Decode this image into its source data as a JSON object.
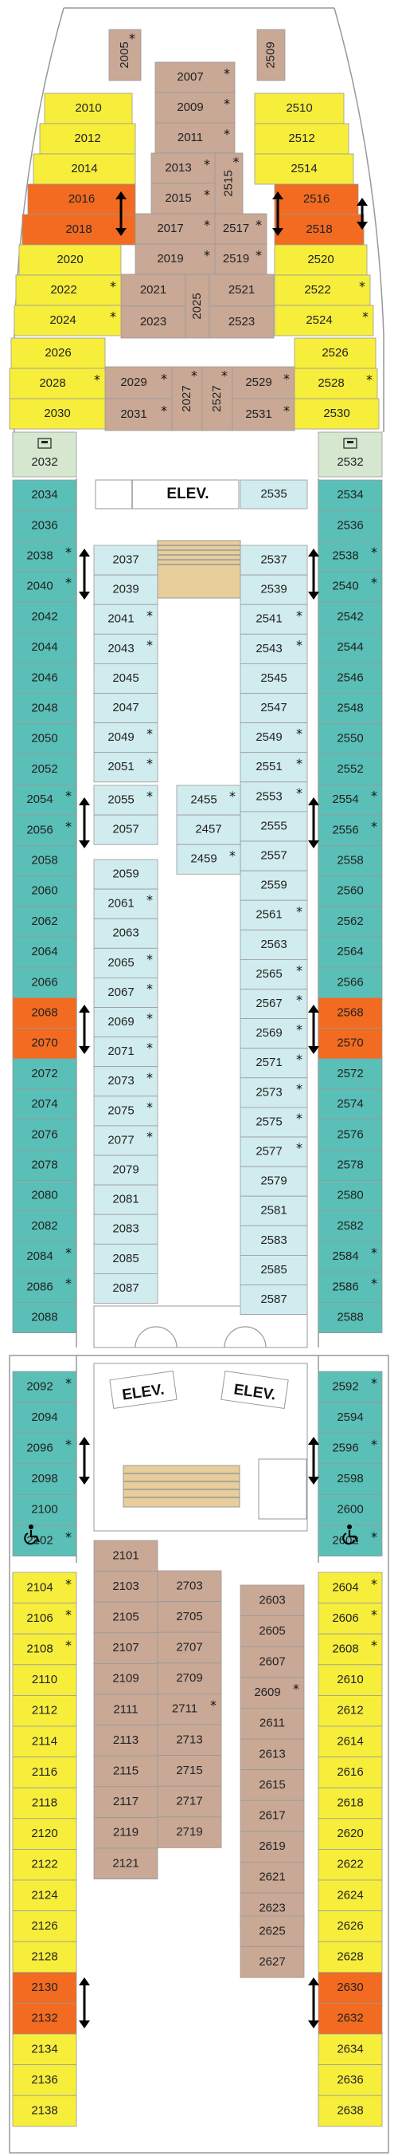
{
  "colors": {
    "balcony": "#F7EE3C",
    "ocean_view": "#5ABFB7",
    "interior": "#D1ECEE",
    "suite": "#C9A896",
    "family_connecting": "#F26B21",
    "accessible": "#D6E7CF",
    "stair": "#E7CE9A",
    "outline": "#999999"
  },
  "legend": {
    "star_symbol": "*",
    "connecting_symbol": "double-arrow-icon",
    "accessible_symbol": "wheelchair-icon",
    "phone_symbol": "phone-icon"
  },
  "elevator_label": "ELEV.",
  "cabins": [
    {
      "n": "2005",
      "t": "suite",
      "star": true
    },
    {
      "n": "2509",
      "t": "suite",
      "star": false
    },
    {
      "n": "2007",
      "t": "suite",
      "star": true
    },
    {
      "n": "2009",
      "t": "suite",
      "star": true
    },
    {
      "n": "2011",
      "t": "suite",
      "star": true
    },
    {
      "n": "2013",
      "t": "suite",
      "star": true
    },
    {
      "n": "2015",
      "t": "suite",
      "star": true
    },
    {
      "n": "2515",
      "t": "suite",
      "star": true
    },
    {
      "n": "2017",
      "t": "suite",
      "star": true
    },
    {
      "n": "2517",
      "t": "suite",
      "star": true
    },
    {
      "n": "2019",
      "t": "suite",
      "star": true
    },
    {
      "n": "2519",
      "t": "suite",
      "star": true
    },
    {
      "n": "2021",
      "t": "suite",
      "star": false
    },
    {
      "n": "2521",
      "t": "suite",
      "star": false
    },
    {
      "n": "2023",
      "t": "suite",
      "star": false
    },
    {
      "n": "2523",
      "t": "suite",
      "star": false
    },
    {
      "n": "2025",
      "t": "suite",
      "star": false
    },
    {
      "n": "2029",
      "t": "suite",
      "star": true
    },
    {
      "n": "2031",
      "t": "suite",
      "star": true
    },
    {
      "n": "2027",
      "t": "suite",
      "star": true
    },
    {
      "n": "2527",
      "t": "suite",
      "star": true
    },
    {
      "n": "2529",
      "t": "suite",
      "star": true
    },
    {
      "n": "2531",
      "t": "suite",
      "star": true
    },
    {
      "n": "2010",
      "t": "balcony",
      "star": false
    },
    {
      "n": "2012",
      "t": "balcony",
      "star": false
    },
    {
      "n": "2014",
      "t": "balcony",
      "star": false
    },
    {
      "n": "2016",
      "t": "family_connecting",
      "star": false
    },
    {
      "n": "2018",
      "t": "family_connecting",
      "star": false
    },
    {
      "n": "2020",
      "t": "balcony",
      "star": false
    },
    {
      "n": "2022",
      "t": "balcony",
      "star": true
    },
    {
      "n": "2024",
      "t": "balcony",
      "star": true
    },
    {
      "n": "2026",
      "t": "balcony",
      "star": false
    },
    {
      "n": "2028",
      "t": "balcony",
      "star": true
    },
    {
      "n": "2030",
      "t": "balcony",
      "star": false
    },
    {
      "n": "2510",
      "t": "balcony",
      "star": false
    },
    {
      "n": "2512",
      "t": "balcony",
      "star": false
    },
    {
      "n": "2514",
      "t": "balcony",
      "star": false
    },
    {
      "n": "2516",
      "t": "family_connecting",
      "star": false
    },
    {
      "n": "2518",
      "t": "family_connecting",
      "star": false
    },
    {
      "n": "2520",
      "t": "balcony",
      "star": false
    },
    {
      "n": "2522",
      "t": "balcony",
      "star": true
    },
    {
      "n": "2524",
      "t": "balcony",
      "star": true
    },
    {
      "n": "2526",
      "t": "balcony",
      "star": false
    },
    {
      "n": "2528",
      "t": "balcony",
      "star": true
    },
    {
      "n": "2530",
      "t": "balcony",
      "star": false
    },
    {
      "n": "2032",
      "t": "accessible",
      "star": false
    },
    {
      "n": "2532",
      "t": "accessible",
      "star": false
    },
    {
      "n": "2034",
      "t": "ocean_view",
      "star": false
    },
    {
      "n": "2036",
      "t": "ocean_view",
      "star": false
    },
    {
      "n": "2038",
      "t": "ocean_view",
      "star": true
    },
    {
      "n": "2040",
      "t": "ocean_view",
      "star": true
    },
    {
      "n": "2042",
      "t": "ocean_view",
      "star": false
    },
    {
      "n": "2044",
      "t": "ocean_view",
      "star": false
    },
    {
      "n": "2046",
      "t": "ocean_view",
      "star": false
    },
    {
      "n": "2048",
      "t": "ocean_view",
      "star": false
    },
    {
      "n": "2050",
      "t": "ocean_view",
      "star": false
    },
    {
      "n": "2052",
      "t": "ocean_view",
      "star": false
    },
    {
      "n": "2054",
      "t": "ocean_view",
      "star": true
    },
    {
      "n": "2056",
      "t": "ocean_view",
      "star": true
    },
    {
      "n": "2058",
      "t": "ocean_view",
      "star": false
    },
    {
      "n": "2060",
      "t": "ocean_view",
      "star": false
    },
    {
      "n": "2062",
      "t": "ocean_view",
      "star": false
    },
    {
      "n": "2064",
      "t": "ocean_view",
      "star": false
    },
    {
      "n": "2066",
      "t": "ocean_view",
      "star": false
    },
    {
      "n": "2068",
      "t": "family_connecting",
      "star": false
    },
    {
      "n": "2070",
      "t": "family_connecting",
      "star": false
    },
    {
      "n": "2072",
      "t": "ocean_view",
      "star": false
    },
    {
      "n": "2074",
      "t": "ocean_view",
      "star": false
    },
    {
      "n": "2076",
      "t": "ocean_view",
      "star": false
    },
    {
      "n": "2078",
      "t": "ocean_view",
      "star": false
    },
    {
      "n": "2080",
      "t": "ocean_view",
      "star": false
    },
    {
      "n": "2082",
      "t": "ocean_view",
      "star": false
    },
    {
      "n": "2084",
      "t": "ocean_view",
      "star": true
    },
    {
      "n": "2086",
      "t": "ocean_view",
      "star": true
    },
    {
      "n": "2088",
      "t": "ocean_view",
      "star": false
    },
    {
      "n": "2534",
      "t": "ocean_view",
      "star": false
    },
    {
      "n": "2536",
      "t": "ocean_view",
      "star": false
    },
    {
      "n": "2538",
      "t": "ocean_view",
      "star": true
    },
    {
      "n": "2540",
      "t": "ocean_view",
      "star": true
    },
    {
      "n": "2542",
      "t": "ocean_view",
      "star": false
    },
    {
      "n": "2544",
      "t": "ocean_view",
      "star": false
    },
    {
      "n": "2546",
      "t": "ocean_view",
      "star": false
    },
    {
      "n": "2548",
      "t": "ocean_view",
      "star": false
    },
    {
      "n": "2550",
      "t": "ocean_view",
      "star": false
    },
    {
      "n": "2552",
      "t": "ocean_view",
      "star": false
    },
    {
      "n": "2554",
      "t": "ocean_view",
      "star": true
    },
    {
      "n": "2556",
      "t": "ocean_view",
      "star": true
    },
    {
      "n": "2558",
      "t": "ocean_view",
      "star": false
    },
    {
      "n": "2560",
      "t": "ocean_view",
      "star": false
    },
    {
      "n": "2562",
      "t": "ocean_view",
      "star": false
    },
    {
      "n": "2564",
      "t": "ocean_view",
      "star": false
    },
    {
      "n": "2566",
      "t": "ocean_view",
      "star": false
    },
    {
      "n": "2568",
      "t": "family_connecting",
      "star": false
    },
    {
      "n": "2570",
      "t": "family_connecting",
      "star": false
    },
    {
      "n": "2572",
      "t": "ocean_view",
      "star": false
    },
    {
      "n": "2574",
      "t": "ocean_view",
      "star": false
    },
    {
      "n": "2576",
      "t": "ocean_view",
      "star": false
    },
    {
      "n": "2578",
      "t": "ocean_view",
      "star": false
    },
    {
      "n": "2580",
      "t": "ocean_view",
      "star": false
    },
    {
      "n": "2582",
      "t": "ocean_view",
      "star": false
    },
    {
      "n": "2584",
      "t": "ocean_view",
      "star": true
    },
    {
      "n": "2586",
      "t": "ocean_view",
      "star": true
    },
    {
      "n": "2588",
      "t": "ocean_view",
      "star": false
    },
    {
      "n": "2535",
      "t": "interior",
      "star": false
    },
    {
      "n": "2037",
      "t": "interior",
      "star": false
    },
    {
      "n": "2039",
      "t": "interior",
      "star": false
    },
    {
      "n": "2041",
      "t": "interior",
      "star": true
    },
    {
      "n": "2043",
      "t": "interior",
      "star": true
    },
    {
      "n": "2045",
      "t": "interior",
      "star": false
    },
    {
      "n": "2047",
      "t": "interior",
      "star": false
    },
    {
      "n": "2049",
      "t": "interior",
      "star": true
    },
    {
      "n": "2051",
      "t": "interior",
      "star": true
    },
    {
      "n": "2055",
      "t": "interior",
      "star": true
    },
    {
      "n": "2057",
      "t": "interior",
      "star": false
    },
    {
      "n": "2059",
      "t": "interior",
      "star": false
    },
    {
      "n": "2061",
      "t": "interior",
      "star": true
    },
    {
      "n": "2063",
      "t": "interior",
      "star": false
    },
    {
      "n": "2065",
      "t": "interior",
      "star": true
    },
    {
      "n": "2067",
      "t": "interior",
      "star": true
    },
    {
      "n": "2069",
      "t": "interior",
      "star": true
    },
    {
      "n": "2071",
      "t": "interior",
      "star": true
    },
    {
      "n": "2073",
      "t": "interior",
      "star": true
    },
    {
      "n": "2075",
      "t": "interior",
      "star": true
    },
    {
      "n": "2077",
      "t": "interior",
      "star": true
    },
    {
      "n": "2079",
      "t": "interior",
      "star": false
    },
    {
      "n": "2081",
      "t": "interior",
      "star": false
    },
    {
      "n": "2083",
      "t": "interior",
      "star": false
    },
    {
      "n": "2085",
      "t": "interior",
      "star": false
    },
    {
      "n": "2087",
      "t": "interior",
      "star": false
    },
    {
      "n": "2455",
      "t": "interior",
      "star": true
    },
    {
      "n": "2457",
      "t": "interior",
      "star": false
    },
    {
      "n": "2459",
      "t": "interior",
      "star": true
    },
    {
      "n": "2537",
      "t": "interior",
      "star": false
    },
    {
      "n": "2539",
      "t": "interior",
      "star": false
    },
    {
      "n": "2541",
      "t": "interior",
      "star": true
    },
    {
      "n": "2543",
      "t": "interior",
      "star": true
    },
    {
      "n": "2545",
      "t": "interior",
      "star": false
    },
    {
      "n": "2547",
      "t": "interior",
      "star": false
    },
    {
      "n": "2549",
      "t": "interior",
      "star": true
    },
    {
      "n": "2551",
      "t": "interior",
      "star": true
    },
    {
      "n": "2553",
      "t": "interior",
      "star": true
    },
    {
      "n": "2555",
      "t": "interior",
      "star": false
    },
    {
      "n": "2557",
      "t": "interior",
      "star": false
    },
    {
      "n": "2559",
      "t": "interior",
      "star": false
    },
    {
      "n": "2561",
      "t": "interior",
      "star": true
    },
    {
      "n": "2563",
      "t": "interior",
      "star": false
    },
    {
      "n": "2565",
      "t": "interior",
      "star": true
    },
    {
      "n": "2567",
      "t": "interior",
      "star": true
    },
    {
      "n": "2569",
      "t": "interior",
      "star": true
    },
    {
      "n": "2571",
      "t": "interior",
      "star": true
    },
    {
      "n": "2573",
      "t": "interior",
      "star": true
    },
    {
      "n": "2575",
      "t": "interior",
      "star": true
    },
    {
      "n": "2577",
      "t": "interior",
      "star": true
    },
    {
      "n": "2579",
      "t": "interior",
      "star": false
    },
    {
      "n": "2581",
      "t": "interior",
      "star": false
    },
    {
      "n": "2583",
      "t": "interior",
      "star": false
    },
    {
      "n": "2585",
      "t": "interior",
      "star": false
    },
    {
      "n": "2587",
      "t": "interior",
      "star": false
    },
    {
      "n": "2092",
      "t": "ocean_view",
      "star": true
    },
    {
      "n": "2094",
      "t": "ocean_view",
      "star": false
    },
    {
      "n": "2096",
      "t": "ocean_view",
      "star": true
    },
    {
      "n": "2098",
      "t": "ocean_view",
      "star": false
    },
    {
      "n": "2100",
      "t": "ocean_view",
      "star": false
    },
    {
      "n": "2102",
      "t": "ocean_view",
      "star": true
    },
    {
      "n": "2592",
      "t": "ocean_view",
      "star": true
    },
    {
      "n": "2594",
      "t": "ocean_view",
      "star": false
    },
    {
      "n": "2596",
      "t": "ocean_view",
      "star": true
    },
    {
      "n": "2598",
      "t": "ocean_view",
      "star": false
    },
    {
      "n": "2600",
      "t": "ocean_view",
      "star": false
    },
    {
      "n": "2602",
      "t": "ocean_view",
      "star": true
    },
    {
      "n": "2104",
      "t": "balcony",
      "star": true
    },
    {
      "n": "2106",
      "t": "balcony",
      "star": true
    },
    {
      "n": "2108",
      "t": "balcony",
      "star": true
    },
    {
      "n": "2110",
      "t": "balcony",
      "star": false
    },
    {
      "n": "2112",
      "t": "balcony",
      "star": false
    },
    {
      "n": "2114",
      "t": "balcony",
      "star": false
    },
    {
      "n": "2116",
      "t": "balcony",
      "star": false
    },
    {
      "n": "2118",
      "t": "balcony",
      "star": false
    },
    {
      "n": "2120",
      "t": "balcony",
      "star": false
    },
    {
      "n": "2122",
      "t": "balcony",
      "star": false
    },
    {
      "n": "2124",
      "t": "balcony",
      "star": false
    },
    {
      "n": "2126",
      "t": "balcony",
      "star": false
    },
    {
      "n": "2128",
      "t": "balcony",
      "star": false
    },
    {
      "n": "2130",
      "t": "family_connecting",
      "star": false
    },
    {
      "n": "2132",
      "t": "family_connecting",
      "star": false
    },
    {
      "n": "2134",
      "t": "balcony",
      "star": false
    },
    {
      "n": "2136",
      "t": "balcony",
      "star": false
    },
    {
      "n": "2138",
      "t": "balcony",
      "star": false
    },
    {
      "n": "2604",
      "t": "balcony",
      "star": true
    },
    {
      "n": "2606",
      "t": "balcony",
      "star": true
    },
    {
      "n": "2608",
      "t": "balcony",
      "star": true
    },
    {
      "n": "2610",
      "t": "balcony",
      "star": false
    },
    {
      "n": "2612",
      "t": "balcony",
      "star": false
    },
    {
      "n": "2614",
      "t": "balcony",
      "star": false
    },
    {
      "n": "2616",
      "t": "balcony",
      "star": false
    },
    {
      "n": "2618",
      "t": "balcony",
      "star": false
    },
    {
      "n": "2620",
      "t": "balcony",
      "star": false
    },
    {
      "n": "2622",
      "t": "balcony",
      "star": false
    },
    {
      "n": "2624",
      "t": "balcony",
      "star": false
    },
    {
      "n": "2626",
      "t": "balcony",
      "star": false
    },
    {
      "n": "2628",
      "t": "balcony",
      "star": false
    },
    {
      "n": "2630",
      "t": "family_connecting",
      "star": false
    },
    {
      "n": "2632",
      "t": "family_connecting",
      "star": false
    },
    {
      "n": "2634",
      "t": "balcony",
      "star": false
    },
    {
      "n": "2636",
      "t": "balcony",
      "star": false
    },
    {
      "n": "2638",
      "t": "balcony",
      "star": false
    },
    {
      "n": "2101",
      "t": "suite",
      "star": false
    },
    {
      "n": "2103",
      "t": "suite",
      "star": false
    },
    {
      "n": "2105",
      "t": "suite",
      "star": false
    },
    {
      "n": "2107",
      "t": "suite",
      "star": false
    },
    {
      "n": "2109",
      "t": "suite",
      "star": false
    },
    {
      "n": "2111",
      "t": "suite",
      "star": false
    },
    {
      "n": "2113",
      "t": "suite",
      "star": false
    },
    {
      "n": "2115",
      "t": "suite",
      "star": false
    },
    {
      "n": "2117",
      "t": "suite",
      "star": false
    },
    {
      "n": "2119",
      "t": "suite",
      "star": false
    },
    {
      "n": "2121",
      "t": "suite",
      "star": false
    },
    {
      "n": "2703",
      "t": "suite",
      "star": false
    },
    {
      "n": "2705",
      "t": "suite",
      "star": false
    },
    {
      "n": "2707",
      "t": "suite",
      "star": false
    },
    {
      "n": "2709",
      "t": "suite",
      "star": false
    },
    {
      "n": "2711",
      "t": "suite",
      "star": true
    },
    {
      "n": "2713",
      "t": "suite",
      "star": false
    },
    {
      "n": "2715",
      "t": "suite",
      "star": false
    },
    {
      "n": "2717",
      "t": "suite",
      "star": false
    },
    {
      "n": "2719",
      "t": "suite",
      "star": false
    },
    {
      "n": "2603",
      "t": "suite",
      "star": false
    },
    {
      "n": "2605",
      "t": "suite",
      "star": false
    },
    {
      "n": "2607",
      "t": "suite",
      "star": false
    },
    {
      "n": "2609",
      "t": "suite",
      "star": true
    },
    {
      "n": "2611",
      "t": "suite",
      "star": false
    },
    {
      "n": "2613",
      "t": "suite",
      "star": false
    },
    {
      "n": "2615",
      "t": "suite",
      "star": false
    },
    {
      "n": "2617",
      "t": "suite",
      "star": false
    },
    {
      "n": "2619",
      "t": "suite",
      "star": false
    },
    {
      "n": "2621",
      "t": "suite",
      "star": false
    },
    {
      "n": "2623",
      "t": "suite",
      "star": false
    },
    {
      "n": "2625",
      "t": "suite",
      "star": false
    },
    {
      "n": "2627",
      "t": "suite",
      "star": false
    }
  ]
}
